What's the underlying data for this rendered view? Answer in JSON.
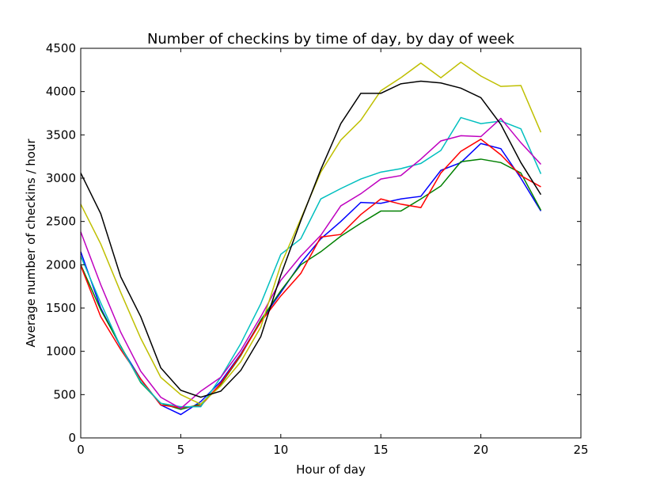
{
  "chart_data": {
    "type": "line",
    "title": "Number of checkins by time of day, by day of week",
    "xlabel": "Hour of day",
    "ylabel": "Average number of checkins / hour",
    "xlim": [
      0,
      25
    ],
    "ylim": [
      0,
      4500
    ],
    "xticks": [
      "0",
      "5",
      "10",
      "15",
      "20",
      "25"
    ],
    "yticks": [
      "0",
      "500",
      "1000",
      "1500",
      "2000",
      "2500",
      "3000",
      "3500",
      "4000",
      "4500"
    ],
    "grid": false,
    "legend": "none",
    "x": [
      0,
      1,
      2,
      3,
      4,
      5,
      6,
      7,
      8,
      9,
      10,
      11,
      12,
      13,
      14,
      15,
      16,
      17,
      18,
      19,
      20,
      21,
      22,
      23
    ],
    "series": [
      {
        "color": "#0000ff",
        "values": [
          2150,
          1500,
          1050,
          680,
          380,
          270,
          420,
          650,
          970,
          1350,
          1680,
          2020,
          2300,
          2500,
          2720,
          2710,
          2760,
          2790,
          3090,
          3180,
          3400,
          3340,
          3000,
          2620
        ]
      },
      {
        "color": "#008000",
        "values": [
          2000,
          1480,
          1060,
          640,
          400,
          330,
          390,
          620,
          950,
          1360,
          1700,
          2000,
          2150,
          2330,
          2480,
          2620,
          2620,
          2760,
          2910,
          3190,
          3220,
          3180,
          3060,
          2630
        ]
      },
      {
        "color": "#ff0000",
        "values": [
          1990,
          1400,
          1020,
          680,
          380,
          350,
          370,
          630,
          960,
          1340,
          1640,
          1900,
          2320,
          2350,
          2580,
          2760,
          2700,
          2660,
          3060,
          3310,
          3450,
          3270,
          3030,
          2900
        ]
      },
      {
        "color": "#00bfbf",
        "values": [
          2100,
          1560,
          1050,
          650,
          400,
          360,
          360,
          700,
          1090,
          1550,
          2120,
          2300,
          2760,
          2880,
          2990,
          3070,
          3110,
          3170,
          3320,
          3700,
          3630,
          3660,
          3570,
          3050
        ]
      },
      {
        "color": "#bf00bf",
        "values": [
          2380,
          1770,
          1220,
          770,
          470,
          340,
          540,
          700,
          1010,
          1400,
          1820,
          2100,
          2340,
          2680,
          2820,
          2990,
          3030,
          3220,
          3430,
          3490,
          3480,
          3690,
          3410,
          3160
        ]
      },
      {
        "color": "#bfbf00",
        "values": [
          2700,
          2240,
          1680,
          1150,
          700,
          500,
          390,
          600,
          880,
          1280,
          2000,
          2530,
          3070,
          3440,
          3670,
          4010,
          4160,
          4330,
          4160,
          4340,
          4180,
          4060,
          4070,
          3530
        ]
      },
      {
        "color": "#000000",
        "values": [
          3060,
          2590,
          1860,
          1400,
          810,
          550,
          470,
          540,
          780,
          1170,
          1880,
          2510,
          3100,
          3630,
          3980,
          3980,
          4090,
          4120,
          4100,
          4040,
          3930,
          3620,
          3180,
          2810
        ]
      }
    ]
  }
}
